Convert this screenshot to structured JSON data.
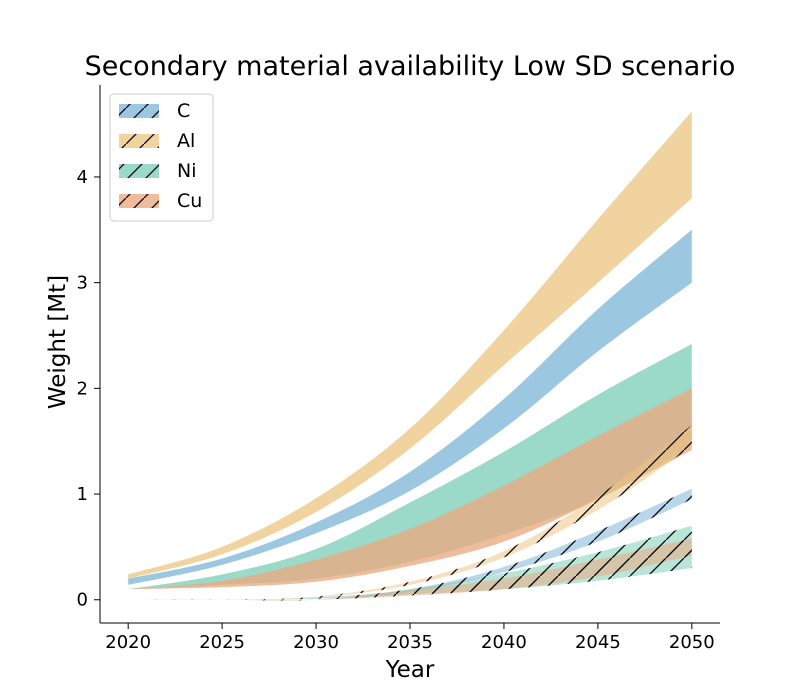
{
  "chart_data": {
    "type": "area",
    "title": "Secondary material availability Low SD scenario",
    "xlabel": "Year",
    "ylabel": "Weight [Mt]",
    "xlim": [
      2018.5,
      2051.5
    ],
    "ylim": [
      -0.22,
      4.87
    ],
    "xticks": [
      2020,
      2025,
      2030,
      2035,
      2040,
      2045,
      2050
    ],
    "xtick_labels": [
      "2020",
      "2025",
      "2030",
      "2035",
      "2040",
      "2045",
      "2050"
    ],
    "yticks": [
      0,
      1,
      2,
      3,
      4
    ],
    "ytick_labels": [
      "0",
      "1",
      "2",
      "3",
      "4"
    ],
    "legend_position": "upper-left",
    "x": [
      2020,
      2025,
      2030,
      2035,
      2040,
      2045,
      2050
    ],
    "series": [
      {
        "name": "C",
        "color": "#7fb7d8",
        "hatched": true,
        "lower": [
          0.14,
          0.33,
          0.63,
          1.03,
          1.62,
          2.35,
          3.0
        ],
        "upper": [
          0.2,
          0.39,
          0.73,
          1.21,
          1.9,
          2.75,
          3.5
        ],
        "hatched_lower": [
          0.0,
          0.0,
          0.01,
          0.07,
          0.26,
          0.55,
          0.95
        ],
        "hatched_upper": [
          0.0,
          0.0,
          0.02,
          0.1,
          0.31,
          0.65,
          1.05
        ]
      },
      {
        "name": "Al",
        "color": "#ecc683",
        "hatched": true,
        "lower": [
          0.2,
          0.43,
          0.83,
          1.43,
          2.22,
          3.0,
          3.8
        ],
        "upper": [
          0.24,
          0.5,
          0.96,
          1.62,
          2.55,
          3.6,
          4.62
        ],
        "hatched_lower": [
          0.0,
          0.0,
          0.02,
          0.14,
          0.4,
          0.85,
          1.45
        ],
        "hatched_upper": [
          0.0,
          0.0,
          0.03,
          0.17,
          0.46,
          0.98,
          1.65
        ]
      },
      {
        "name": "Ni",
        "color": "#7fcfb9",
        "hatched": true,
        "lower": [
          0.1,
          0.14,
          0.2,
          0.36,
          0.62,
          0.95,
          1.46
        ],
        "upper": [
          0.1,
          0.24,
          0.48,
          0.92,
          1.4,
          1.94,
          2.42
        ],
        "hatched_lower": [
          0.0,
          0.0,
          0.0,
          0.05,
          0.1,
          0.18,
          0.3
        ],
        "hatched_upper": [
          0.0,
          0.0,
          0.0,
          0.1,
          0.25,
          0.45,
          0.7
        ]
      },
      {
        "name": "Cu",
        "color": "#eba980",
        "hatched": true,
        "lower": [
          0.1,
          0.12,
          0.17,
          0.32,
          0.55,
          0.95,
          1.42
        ],
        "upper": [
          0.1,
          0.18,
          0.38,
          0.67,
          1.08,
          1.55,
          2.0
        ],
        "hatched_lower": [
          0.0,
          0.0,
          0.0,
          0.04,
          0.1,
          0.22,
          0.42
        ],
        "hatched_upper": [
          0.0,
          0.0,
          0.0,
          0.09,
          0.2,
          0.38,
          0.58
        ]
      }
    ]
  }
}
